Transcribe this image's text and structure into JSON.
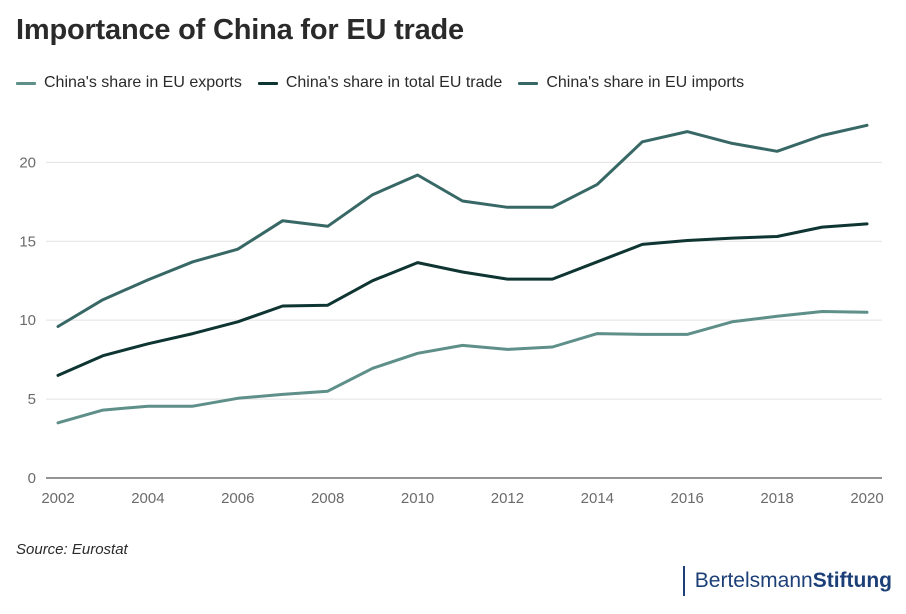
{
  "chart_data": {
    "type": "line",
    "title": "Importance of China for EU trade",
    "x": [
      2002,
      2003,
      2004,
      2005,
      2006,
      2007,
      2008,
      2009,
      2010,
      2011,
      2012,
      2013,
      2014,
      2015,
      2016,
      2017,
      2018,
      2019,
      2020
    ],
    "series": [
      {
        "name": "China's share in EU exports",
        "color": "#5e8f89",
        "values": [
          3.5,
          4.3,
          4.55,
          4.55,
          5.05,
          5.3,
          5.5,
          6.95,
          7.9,
          8.4,
          8.15,
          8.3,
          9.15,
          9.1,
          9.1,
          9.9,
          10.25,
          10.55,
          10.5
        ]
      },
      {
        "name": "China's share in total EU trade",
        "color": "#0e3532",
        "values": [
          6.5,
          7.75,
          8.5,
          9.15,
          9.9,
          10.9,
          10.95,
          12.5,
          13.65,
          13.05,
          12.6,
          12.6,
          13.7,
          14.8,
          15.05,
          15.2,
          15.3,
          15.9,
          16.1
        ]
      },
      {
        "name": "China's share in EU imports",
        "color": "#386866",
        "values": [
          9.6,
          11.3,
          12.55,
          13.7,
          14.5,
          16.3,
          15.95,
          17.95,
          19.2,
          17.55,
          17.15,
          17.15,
          18.6,
          21.3,
          21.95,
          21.2,
          20.7,
          21.7,
          22.35
        ]
      }
    ],
    "yticks": [
      0,
      5,
      10,
      15,
      20
    ],
    "xticks": [
      2002,
      2004,
      2006,
      2008,
      2010,
      2012,
      2014,
      2016,
      2018,
      2020
    ],
    "ylim": [
      0,
      23
    ],
    "xlim": [
      2002,
      2020
    ],
    "grid": "horizontal",
    "legend_position": "top-left"
  },
  "source": "Source: Eurostat",
  "logo": {
    "light": "Bertelsmann",
    "bold": "Stiftung"
  }
}
